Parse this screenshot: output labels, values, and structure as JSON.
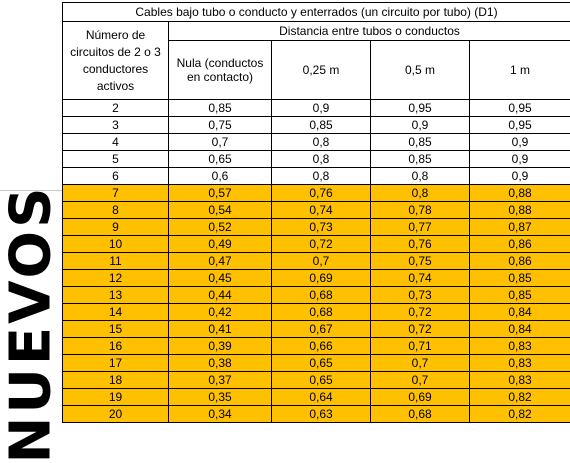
{
  "title": "Cables bajo tubo o conducto y enterrados (un circuito por tubo) (D1)",
  "circuits_header": "Número de circuitos de 2 o 3 conductores activos",
  "distance_header": "Distancia entre tubos o conductos",
  "columns": [
    "Nula (conductos en contacto)",
    "0,25 m",
    "0,5 m",
    "1 m"
  ],
  "side_label": "NUEVOS",
  "highlight_color": "#ffc000",
  "rows": [
    [
      "2",
      "0,85",
      "0,9",
      "0,95",
      "0,95"
    ],
    [
      "3",
      "0,75",
      "0,85",
      "0,9",
      "0,95"
    ],
    [
      "4",
      "0,7",
      "0,8",
      "0,85",
      "0,9"
    ],
    [
      "5",
      "0,65",
      "0,8",
      "0,85",
      "0,9"
    ],
    [
      "6",
      "0,6",
      "0,8",
      "0,8",
      "0,9"
    ],
    [
      "7",
      "0,57",
      "0,76",
      "0,8",
      "0,88"
    ],
    [
      "8",
      "0,54",
      "0,74",
      "0,78",
      "0,88"
    ],
    [
      "9",
      "0,52",
      "0,73",
      "0,77",
      "0,87"
    ],
    [
      "10",
      "0,49",
      "0,72",
      "0,76",
      "0,86"
    ],
    [
      "11",
      "0,47",
      "0,7",
      "0,75",
      "0,86"
    ],
    [
      "12",
      "0,45",
      "0,69",
      "0,74",
      "0,85"
    ],
    [
      "13",
      "0,44",
      "0,68",
      "0,73",
      "0,85"
    ],
    [
      "14",
      "0,42",
      "0,68",
      "0,72",
      "0,84"
    ],
    [
      "15",
      "0,41",
      "0,67",
      "0,72",
      "0,84"
    ],
    [
      "16",
      "0,39",
      "0,66",
      "0,71",
      "0,83"
    ],
    [
      "17",
      "0,38",
      "0,65",
      "0,7",
      "0,83"
    ],
    [
      "18",
      "0,37",
      "0,65",
      "0,7",
      "0,83"
    ],
    [
      "19",
      "0,35",
      "0,64",
      "0,69",
      "0,82"
    ],
    [
      "20",
      "0,34",
      "0,63",
      "0,68",
      "0,82"
    ]
  ]
}
